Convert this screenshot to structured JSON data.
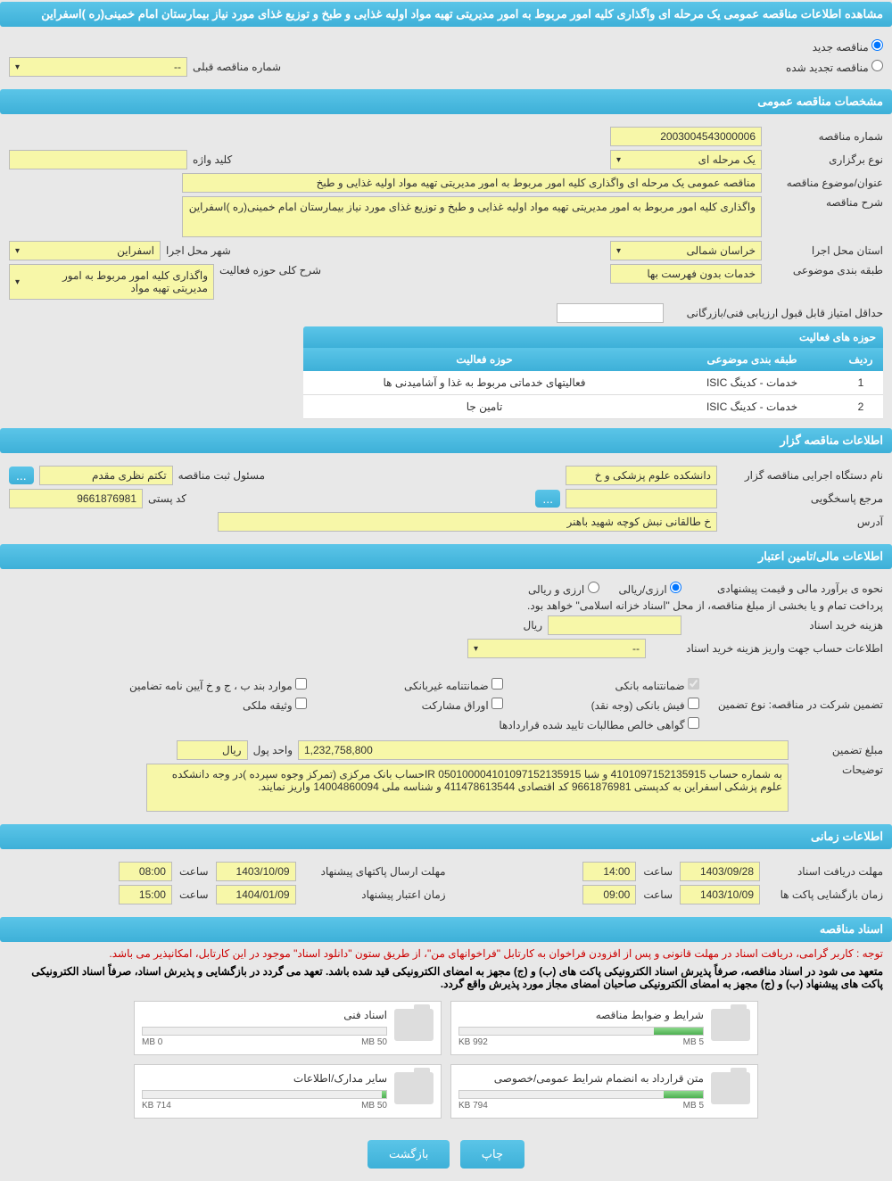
{
  "page_title": "مشاهده اطلاعات مناقصه عمومی یک مرحله ای واگذاری کلیه امور مربوط به امور مدیریتی تهیه مواد اولیه غذایی و طبخ و توزیع غذای مورد نیاز بیمارستان امام خمینی(ره )اسفراین",
  "tender_type": {
    "new": "مناقصه جدید",
    "renewed": "مناقصه تجدید شده",
    "prev_label": "شماره مناقصه قبلی",
    "prev_value": "--"
  },
  "sections": {
    "general": "مشخصات مناقصه عمومی",
    "organizer": "اطلاعات مناقصه گزار",
    "financial": "اطلاعات مالی/تامین اعتبار",
    "timing": "اطلاعات زمانی",
    "documents": "اسناد مناقصه"
  },
  "general": {
    "number_label": "شماره مناقصه",
    "number": "2003004543000006",
    "type_label": "نوع برگزاری",
    "type": "یک مرحله ای",
    "keyword_label": "کلید واژه",
    "keyword": "",
    "subject_label": "عنوان/موضوع مناقصه",
    "subject": "مناقصه عمومی یک مرحله ای واگذاری کلیه امور مربوط به امور مدیریتی تهیه مواد اولیه غذایی و طبخ",
    "desc_label": "شرح مناقصه",
    "desc": "واگذاری کلیه امور مربوط به امور مدیریتی تهیه مواد اولیه غذایی و طبخ و توزیع غذای مورد نیاز بیمارستان امام خمینی(ره )اسفراین",
    "province_label": "استان محل اجرا",
    "province": "خراسان شمالی",
    "city_label": "شهر محل اجرا",
    "city": "اسفراین",
    "category_label": "طبقه بندی موضوعی",
    "category": "خدمات بدون فهرست بها",
    "activity_scope_label": "شرح کلی حوزه فعالیت",
    "activity_scope": "واگذاری کلیه امور مربوط به امور مدیریتی تهیه مواد",
    "min_score_label": "حداقل امتیاز قابل قبول ارزیابی فنی/بازرگانی",
    "min_score": ""
  },
  "activity_table": {
    "title": "حوزه های فعالیت",
    "cols": [
      "ردیف",
      "طبقه بندی موضوعی",
      "حوزه فعالیت"
    ],
    "rows": [
      [
        "1",
        "خدمات - کدینگ ISIC",
        "فعالیتهای خدماتی مربوط به غذا و آشامیدنی ها"
      ],
      [
        "2",
        "خدمات - کدینگ ISIC",
        "تامین جا"
      ]
    ]
  },
  "organizer": {
    "org_label": "نام دستگاه اجرایی مناقصه گزار",
    "org": "دانشکده علوم پزشکی و خ",
    "agent_label": "مسئول ثبت مناقصه",
    "agent": "تکتم نظری مقدم",
    "more": "...",
    "answer_ref_label": "مرجع پاسخگویی",
    "answer_ref": "",
    "postal_label": "کد پستی",
    "postal": "9661876981",
    "address_label": "آدرس",
    "address": "خ طالقانی نبش کوچه شهید باهنر"
  },
  "financial": {
    "estimate_label": "نحوه ی برآورد مالی و قیمت پیشنهادی",
    "opt1": "ارزی/ریالی",
    "opt2": "ارزی و ریالی",
    "payment_note": "پرداخت تمام و یا بخشی از مبلغ مناقصه، از محل \"اسناد خزانه اسلامی\" خواهد بود.",
    "doc_cost_label": "هزینه خرید اسناد",
    "doc_cost": "",
    "currency": "ریال",
    "account_label": "اطلاعات حساب جهت واریز هزینه خرید اسناد",
    "account": "--",
    "guarantee_label": "تضمین شرکت در مناقصه:   نوع تضمین",
    "guarantees": {
      "g1": "ضمانتنامه بانکی",
      "g2": "ضمانتنامه غیربانکی",
      "g3": "موارد بند ب ، ج و خ آیین نامه تضامین",
      "g4": "فیش بانکی (وجه نقد)",
      "g5": "اوراق مشارکت",
      "g6": "وثیقه ملکی",
      "g7": "گواهی خالص مطالبات تایید شده قراردادها"
    },
    "amount_label": "مبلغ تضمین",
    "amount": "1,232,758,800",
    "unit_label": "واحد پول",
    "unit": "ریال",
    "notes_label": "توضیحات",
    "notes": "به شماره حساب 4101097152135915 و شبا  IR 050100004101097152135915حساب بانک مرکزی (تمرکز وجوه سپرده )در وجه دانشکده علوم پزشکی اسفراین  به کدپستی 9661876981 کد اقتصادی 411478613544 و شناسه ملی 14004860094  واریز نمایند."
  },
  "timing": {
    "t1_label": "مهلت دریافت اسناد",
    "t1_date": "1403/09/28",
    "t1_time": "14:00",
    "t2_label": "مهلت ارسال پاکتهای پیشنهاد",
    "t2_date": "1403/10/09",
    "t2_time": "08:00",
    "t3_label": "زمان بازگشایی پاکت ها",
    "t3_date": "1403/10/09",
    "t3_time": "09:00",
    "t4_label": "زمان اعتبار پیشنهاد",
    "t4_date": "1404/01/09",
    "t4_time": "15:00",
    "hour_label": "ساعت"
  },
  "docs": {
    "notice": "توجه : کاربر گرامی، دریافت اسناد در مهلت قانونی و پس از افزودن فراخوان به کارتابل \"فراخوانهای من\"، از طریق ستون \"دانلود اسناد\" موجود در این کارتابل، امکانپذیر می باشد.",
    "note2": "متعهد می شود در اسناد مناقصه، صرفاً پذیرش اسناد الکترونیکی پاکت های (ب) و (ج) مجهز به امضای الکترونیکی قید شده باشد. تعهد می گردد در بازگشایی و پذیرش اسناد، صرفاً اسناد الکترونیکی پاکت های پیشنهاد (ب) و (ج) مجهز به امضای الکترونیکی صاحبان امضای مجاز مورد پذیرش واقع گردد.",
    "items": [
      {
        "title": "شرایط و ضوابط مناقصه",
        "used": "992 KB",
        "total": "5 MB",
        "pct": 20
      },
      {
        "title": "اسناد فنی",
        "used": "0 MB",
        "total": "50 MB",
        "pct": 0
      },
      {
        "title": "متن قرارداد به انضمام شرایط عمومی/خصوصی",
        "used": "794 KB",
        "total": "5 MB",
        "pct": 16
      },
      {
        "title": "سایر مدارک/اطلاعات",
        "used": "714 KB",
        "total": "50 MB",
        "pct": 2
      }
    ]
  },
  "buttons": {
    "print": "چاپ",
    "back": "بازگشت"
  }
}
